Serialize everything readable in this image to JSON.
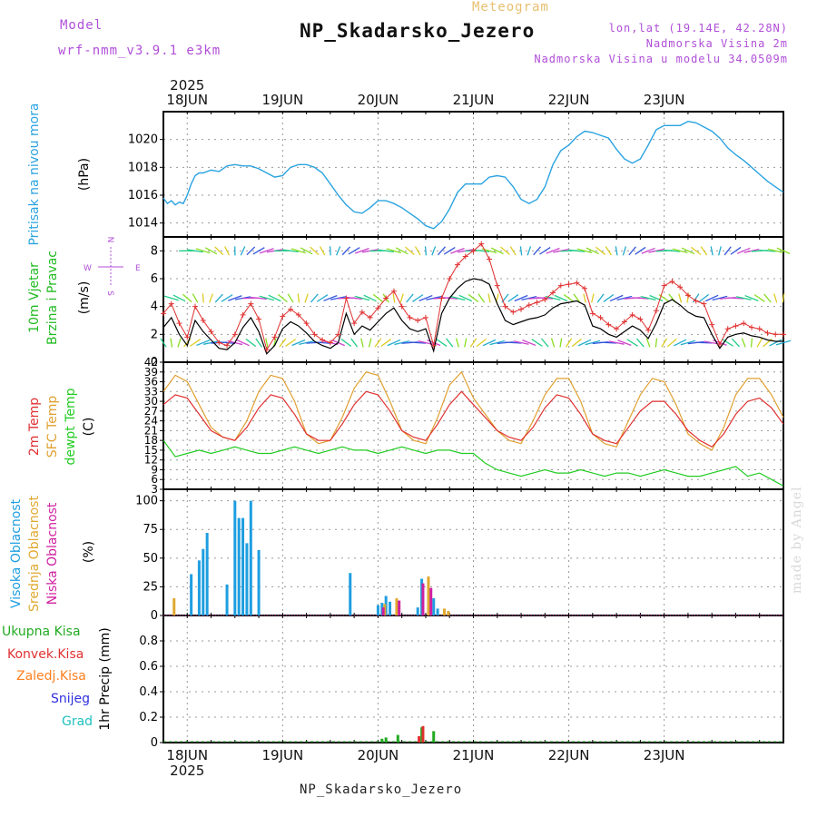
{
  "header": {
    "model_label": "Model",
    "model_version": "wrf-nmm_v3.9.1 e3km",
    "meteogram_label": "Meteogram",
    "station_title": "NP_Skadarsko_Jezero",
    "coordinates": "lon,lat (19.14E, 42.28N)",
    "altitude": "Nadmorska Visina 2m",
    "model_altitude": "Nadmorska Visina u modelu 34.0509m",
    "footer_station": "NP_Skadarsko_Jezero",
    "made_by": "made by Angel"
  },
  "time_axis": {
    "year": "2025",
    "days": [
      "18JUN",
      "19JUN",
      "20JUN",
      "21JUN",
      "22JUN",
      "23JUN"
    ],
    "start_hour": 0,
    "end_hour": 144
  },
  "colors": {
    "pressure": "#2aa3e0",
    "wind_label": "#22bb22",
    "wind_speed": "#000000",
    "wind_gust": "#e03030",
    "temp2m": "#e03030",
    "sfc_temp": "#e0a030",
    "dewpt": "#22cc22",
    "cloud_high": "#1e9ee0",
    "cloud_mid": "#e0a830",
    "cloud_low": "#d020a0",
    "precip_total": "#22aa22",
    "precip_conv": "#e03030",
    "precip_frozen": "#ff8020",
    "snow": "#3030e0",
    "graupel": "#20c0c0",
    "compass": "#b04fd8"
  },
  "chart_data": [
    {
      "id": "pressure",
      "type": "line",
      "title": "Pritisak na nivou mora",
      "ylabel": "(hPa)",
      "ylim": [
        1013,
        1022
      ],
      "yticks": [
        1014,
        1016,
        1018,
        1020
      ],
      "x": [
        -6,
        -5,
        -4,
        -3,
        -2,
        -1,
        0,
        1,
        2,
        3,
        4,
        6,
        8,
        10,
        12,
        14,
        16,
        18,
        20,
        22,
        24,
        26,
        28,
        30,
        32,
        34,
        36,
        38,
        40,
        42,
        44,
        46,
        48,
        50,
        52,
        54,
        56,
        58,
        60,
        62,
        64,
        66,
        68,
        70,
        72,
        74,
        76,
        78,
        80,
        82,
        84,
        86,
        88,
        90,
        92,
        94,
        96,
        98,
        100,
        102,
        104,
        106,
        108,
        110,
        112,
        114,
        116,
        118,
        120,
        122,
        124,
        126,
        128,
        130,
        132,
        134,
        136,
        138,
        140,
        142,
        144,
        146,
        148,
        150
      ],
      "series": [
        {
          "name": "MSLP",
          "values": [
            1015.8,
            1015.4,
            1015.6,
            1015.3,
            1015.5,
            1015.4,
            1016.0,
            1016.8,
            1017.4,
            1017.6,
            1017.6,
            1017.8,
            1017.7,
            1018.1,
            1018.2,
            1018.1,
            1018.1,
            1017.9,
            1017.6,
            1017.3,
            1017.4,
            1018.0,
            1018.2,
            1018.2,
            1018.0,
            1017.6,
            1016.8,
            1016.0,
            1015.3,
            1014.8,
            1014.7,
            1015.1,
            1015.6,
            1015.6,
            1015.4,
            1015.1,
            1014.7,
            1014.3,
            1013.8,
            1013.6,
            1014.1,
            1015.0,
            1016.2,
            1016.8,
            1016.8,
            1016.8,
            1017.3,
            1017.4,
            1017.3,
            1016.6,
            1015.7,
            1015.4,
            1015.7,
            1016.6,
            1018.2,
            1019.2,
            1019.6,
            1020.2,
            1020.6,
            1020.5,
            1020.3,
            1020.1,
            1019.3,
            1018.6,
            1018.3,
            1018.6,
            1019.6,
            1020.7,
            1021.0,
            1021.0,
            1021.0,
            1021.3,
            1021.2,
            1020.9,
            1020.6,
            1020.1,
            1019.4,
            1018.9,
            1018.5,
            1018.0,
            1017.5,
            1017.0,
            1016.6,
            1016.2
          ]
        }
      ]
    },
    {
      "id": "wind",
      "type": "line",
      "title": "10m Vjetar",
      "title2": "Brzina i Pravac",
      "ylabel": "(m/s)",
      "ylim": [
        0,
        9
      ],
      "yticks": [
        0,
        2,
        4,
        6,
        8
      ],
      "compass": {
        "n": "N",
        "s": "S",
        "e": "E",
        "w": "W"
      },
      "x": [
        -6,
        -4,
        -2,
        0,
        2,
        4,
        6,
        8,
        10,
        12,
        14,
        16,
        18,
        20,
        22,
        24,
        26,
        28,
        30,
        32,
        34,
        36,
        38,
        40,
        42,
        44,
        46,
        48,
        50,
        52,
        54,
        56,
        58,
        60,
        62,
        64,
        66,
        68,
        70,
        72,
        74,
        76,
        78,
        80,
        82,
        84,
        86,
        88,
        90,
        92,
        94,
        96,
        98,
        100,
        102,
        104,
        106,
        108,
        110,
        112,
        114,
        116,
        118,
        120,
        122,
        124,
        126,
        128,
        130,
        132,
        134,
        136,
        138,
        140,
        142,
        144,
        146,
        148,
        150
      ],
      "series": [
        {
          "name": "speed",
          "values": [
            2.5,
            3.2,
            2.0,
            1.2,
            3.0,
            2.2,
            1.6,
            1.0,
            0.9,
            1.4,
            2.5,
            3.2,
            2.2,
            0.6,
            1.2,
            2.4,
            2.9,
            2.6,
            2.1,
            1.5,
            1.2,
            1.0,
            1.4,
            3.5,
            2.0,
            2.6,
            2.3,
            2.9,
            3.5,
            3.9,
            3.0,
            2.4,
            2.2,
            2.4,
            0.8,
            3.5,
            4.6,
            5.3,
            5.8,
            6.0,
            5.9,
            5.6,
            4.2,
            3.0,
            2.7,
            2.9,
            3.1,
            3.2,
            3.4,
            3.9,
            4.2,
            4.3,
            4.4,
            4.1,
            2.6,
            2.4,
            2.0,
            1.8,
            2.2,
            2.6,
            2.3,
            1.7,
            2.8,
            4.2,
            4.5,
            4.1,
            3.6,
            3.3,
            3.2,
            2.0,
            1.0,
            1.8,
            2.0,
            2.1,
            1.9,
            1.8,
            1.6,
            1.5,
            1.5
          ]
        },
        {
          "name": "gust",
          "values": [
            3.5,
            4.2,
            2.8,
            1.8,
            4.0,
            3.0,
            2.2,
            1.4,
            1.2,
            2.0,
            3.4,
            4.2,
            3.1,
            0.9,
            1.8,
            3.3,
            3.8,
            3.4,
            2.8,
            2.0,
            1.6,
            1.4,
            2.0,
            4.6,
            2.8,
            3.6,
            3.2,
            3.9,
            4.6,
            5.1,
            4.0,
            3.2,
            3.0,
            3.2,
            1.2,
            4.6,
            6.0,
            7.0,
            7.6,
            8.0,
            8.5,
            7.4,
            5.5,
            4.0,
            3.6,
            3.8,
            4.1,
            4.3,
            4.5,
            5.0,
            5.5,
            5.6,
            5.7,
            5.3,
            3.5,
            3.2,
            2.7,
            2.4,
            2.9,
            3.4,
            3.1,
            2.3,
            3.7,
            5.5,
            5.8,
            5.4,
            4.8,
            4.4,
            4.2,
            2.7,
            1.3,
            2.4,
            2.6,
            2.8,
            2.5,
            2.4,
            2.1,
            2.0,
            2.0
          ]
        }
      ]
    },
    {
      "id": "temperature",
      "type": "line",
      "title": "2m Temp",
      "title2": "SFC Temp",
      "title3": "dewpt Temp",
      "ylabel": "(C)",
      "ylim": [
        3,
        42
      ],
      "yticks": [
        3,
        6,
        9,
        12,
        15,
        18,
        21,
        24,
        27,
        30,
        33,
        36,
        39,
        42
      ],
      "x": [
        -6,
        -3,
        0,
        3,
        6,
        9,
        12,
        15,
        18,
        21,
        24,
        27,
        30,
        33,
        36,
        39,
        42,
        45,
        48,
        51,
        54,
        57,
        60,
        63,
        66,
        69,
        72,
        75,
        78,
        81,
        84,
        87,
        90,
        93,
        96,
        99,
        102,
        105,
        108,
        111,
        114,
        117,
        120,
        123,
        126,
        129,
        132,
        135,
        138,
        141,
        144,
        147,
        150
      ],
      "series": [
        {
          "name": "2m Temp",
          "values": [
            29,
            32,
            31,
            26,
            21,
            19,
            18,
            22,
            28,
            32,
            31,
            26,
            20,
            18,
            18,
            23,
            29,
            33,
            32,
            27,
            21,
            19,
            18,
            23,
            29,
            33,
            29,
            25,
            21,
            19,
            18,
            22,
            28,
            32,
            31,
            26,
            20,
            18,
            17,
            22,
            27,
            30,
            30,
            26,
            21,
            18,
            16,
            20,
            26,
            30,
            31,
            28,
            23
          ]
        },
        {
          "name": "SFC Temp",
          "values": [
            33,
            38,
            36,
            29,
            22,
            19,
            18,
            24,
            33,
            38,
            37,
            30,
            20,
            17,
            18,
            25,
            34,
            39,
            38,
            30,
            21,
            18,
            17,
            25,
            35,
            39,
            31,
            26,
            21,
            18,
            17,
            24,
            32,
            37,
            37,
            30,
            20,
            17,
            16,
            24,
            32,
            37,
            36,
            29,
            20,
            17,
            15,
            22,
            32,
            37,
            37,
            32,
            25
          ]
        },
        {
          "name": "Dewpt",
          "values": [
            18,
            13,
            14,
            15,
            14,
            15,
            16,
            15,
            14,
            14,
            15,
            16,
            15,
            14,
            15,
            16,
            15,
            15,
            14,
            15,
            16,
            15,
            14,
            15,
            15,
            14,
            14,
            11,
            9,
            8,
            7,
            8,
            9,
            8,
            8,
            9,
            8,
            7,
            8,
            8,
            7,
            8,
            9,
            8,
            7,
            7,
            8,
            9,
            10,
            7,
            8,
            6,
            4
          ]
        }
      ]
    },
    {
      "id": "clouds",
      "type": "bar",
      "title": "Visoka Oblacnost",
      "title2": "Srednja Oblacnost",
      "title3": "Niska Oblacnost",
      "ylabel": "(%)",
      "ylim": [
        0,
        110
      ],
      "yticks": [
        0,
        25,
        50,
        75,
        100
      ],
      "high": [
        [
          1,
          36
        ],
        [
          3,
          48
        ],
        [
          4,
          58
        ],
        [
          5,
          72
        ],
        [
          10,
          27
        ],
        [
          12,
          100
        ],
        [
          13,
          85
        ],
        [
          14,
          85
        ],
        [
          15,
          63
        ],
        [
          16,
          100
        ],
        [
          18,
          57
        ],
        [
          41,
          37
        ],
        [
          48,
          9
        ],
        [
          49,
          11
        ],
        [
          50,
          17
        ],
        [
          51,
          12
        ],
        [
          53,
          9
        ],
        [
          58,
          7
        ],
        [
          59,
          32
        ],
        [
          62,
          15
        ],
        [
          63,
          6
        ]
      ],
      "mid": [
        [
          -4,
          15
        ],
        [
          49,
          10
        ],
        [
          52,
          15
        ],
        [
          60,
          34
        ],
        [
          64,
          6
        ],
        [
          65,
          4
        ]
      ],
      "low": [
        [
          50,
          7
        ],
        [
          54,
          13
        ],
        [
          60,
          28
        ],
        [
          62,
          24
        ]
      ]
    },
    {
      "id": "precip",
      "type": "bar",
      "title1": "Ukupna Kisa",
      "title2": "Konvek.Kisa",
      "title3": "Zaledj.Kisa",
      "title4": "Snijeg",
      "title5": "Grad",
      "ylabel": "1hr Precip (mm)",
      "ylim": [
        0,
        1.0
      ],
      "yticks": [
        0,
        0.2,
        0.4,
        0.6,
        0.8
      ],
      "total": [
        [
          49,
          0.03
        ],
        [
          50,
          0.04
        ],
        [
          53,
          0.06
        ],
        [
          59,
          0.12
        ],
        [
          62,
          0.09
        ]
      ],
      "conv": [
        [
          59,
          0.05
        ],
        [
          60,
          0.13
        ]
      ]
    }
  ]
}
